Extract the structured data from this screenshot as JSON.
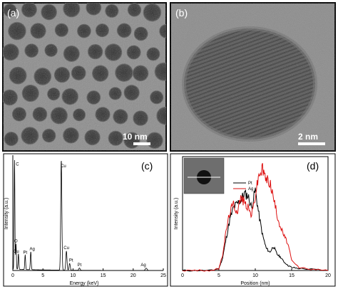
{
  "panels": {
    "a": {
      "label": "(a)",
      "scale_bar": "10 nm"
    },
    "b": {
      "label": "(b)",
      "scale_bar": "2 nm"
    },
    "c": {
      "label": "(c)"
    },
    "d": {
      "label": "(d)"
    }
  },
  "chart_data": [
    {
      "type": "line",
      "panel": "(c)",
      "xlabel": "Energy (keV)",
      "ylabel": "Intensity (a.u.)",
      "xlim": [
        0,
        25
      ],
      "xticks": [
        0,
        5,
        10,
        15,
        20,
        25
      ],
      "peaks": [
        {
          "label": "C",
          "x": 0.28,
          "y": 0.97
        },
        {
          "label": "O",
          "x": 0.52,
          "y": 0.23
        },
        {
          "label": "Cu",
          "x": 0.93,
          "y": 0.14
        },
        {
          "label": "Pt",
          "x": 2.05,
          "y": 0.13
        },
        {
          "label": "Ag",
          "x": 2.98,
          "y": 0.16
        },
        {
          "label": "Cu",
          "x": 8.05,
          "y": 0.98
        },
        {
          "label": "Cu",
          "x": 8.9,
          "y": 0.17
        },
        {
          "label": "Pt",
          "x": 9.44,
          "y": 0.06
        },
        {
          "label": "Pt",
          "x": 11.07,
          "y": 0.02
        },
        {
          "label": "Ag",
          "x": 22.16,
          "y": 0.02
        }
      ],
      "color": "#000000"
    },
    {
      "type": "line",
      "panel": "(d)",
      "xlabel": "Position (nm)",
      "ylabel": "Intensity (a.u.)",
      "xlim": [
        0,
        20
      ],
      "xticks": [
        0,
        5,
        10,
        15,
        20
      ],
      "legend": {
        "position": "top-center",
        "entries": [
          "Pt",
          "Ag"
        ]
      },
      "series": [
        {
          "name": "Pt",
          "color": "#000000",
          "x": [
            0,
            2,
            4,
            5,
            5.5,
            6,
            6.5,
            7,
            7.5,
            8,
            8.5,
            9,
            9.5,
            10,
            10.5,
            11,
            11.5,
            12,
            12.5,
            13,
            13.5,
            14,
            14.5,
            15,
            16,
            18,
            20
          ],
          "y": [
            0,
            0,
            0,
            0.02,
            0.12,
            0.32,
            0.5,
            0.62,
            0.66,
            0.7,
            0.76,
            0.74,
            0.62,
            0.8,
            0.55,
            0.35,
            0.22,
            0.18,
            0.24,
            0.16,
            0.13,
            0.08,
            0.05,
            0.03,
            0.02,
            0.01,
            0
          ]
        },
        {
          "name": "Ag",
          "color": "#dd1111",
          "x": [
            0,
            2,
            4,
            5,
            5.5,
            6,
            6.5,
            7,
            7.5,
            8,
            8.5,
            9,
            9.5,
            10,
            10.5,
            11,
            11.5,
            12,
            12.5,
            13,
            13.5,
            14,
            14.5,
            15,
            16,
            18,
            20
          ],
          "y": [
            0,
            0,
            0,
            0.02,
            0.15,
            0.4,
            0.58,
            0.66,
            0.58,
            0.72,
            0.68,
            0.62,
            0.55,
            0.74,
            0.95,
            1.0,
            0.9,
            0.88,
            0.72,
            0.55,
            0.42,
            0.34,
            0.26,
            0.1,
            0.03,
            0.01,
            0
          ]
        }
      ]
    }
  ]
}
